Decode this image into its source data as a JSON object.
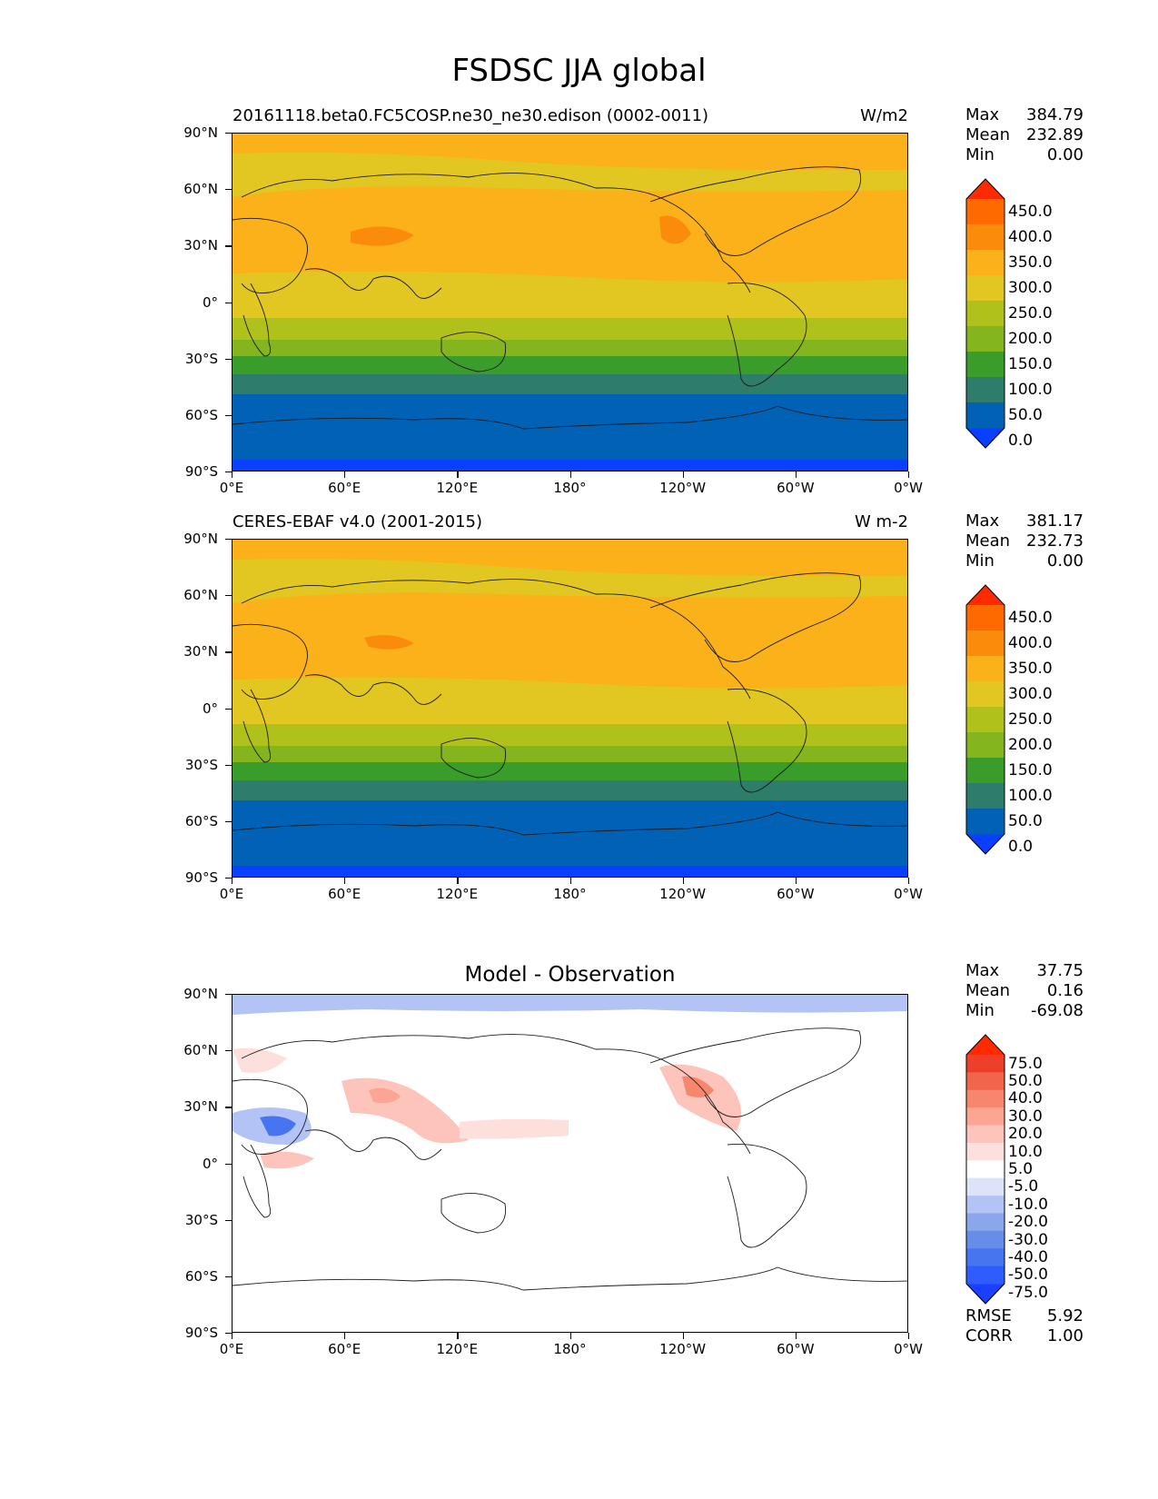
{
  "title": "FSDSC JJA global",
  "lat_labels": [
    "90°N",
    "60°N",
    "30°N",
    "0°",
    "30°S",
    "60°S",
    "90°S"
  ],
  "lon_labels": [
    "0°E",
    "60°E",
    "120°E",
    "180°",
    "120°W",
    "60°W",
    "0°W"
  ],
  "panels": [
    {
      "title_left": "20161118.beta0.FC5COSP.ne30_ne30.edison (0002-0011)",
      "title_right": "W/m2",
      "stats": {
        "max_label": "Max",
        "max": "384.79",
        "mean_label": "Mean",
        "mean": "232.89",
        "min_label": "Min",
        "min": "0.00"
      },
      "colorbar_labels": [
        "450.0",
        "400.0",
        "350.0",
        "300.0",
        "250.0",
        "200.0",
        "150.0",
        "100.0",
        "50.0",
        "0.0"
      ]
    },
    {
      "title_left": "CERES-EBAF v4.0 (2001-2015)",
      "title_right": "W m-2",
      "stats": {
        "max_label": "Max",
        "max": "381.17",
        "mean_label": "Mean",
        "mean": "232.73",
        "min_label": "Min",
        "min": "0.00"
      },
      "colorbar_labels": [
        "450.0",
        "400.0",
        "350.0",
        "300.0",
        "250.0",
        "200.0",
        "150.0",
        "100.0",
        "50.0",
        "0.0"
      ]
    },
    {
      "title_center": "Model - Observation",
      "stats": {
        "max_label": "Max",
        "max": "37.75",
        "mean_label": "Mean",
        "mean": "0.16",
        "min_label": "Min",
        "min": "-69.08"
      },
      "colorbar_labels": [
        "75.0",
        "50.0",
        "40.0",
        "30.0",
        "20.0",
        "10.0",
        "5.0",
        "-5.0",
        "-10.0",
        "-20.0",
        "-30.0",
        "-40.0",
        "-50.0",
        "-75.0"
      ],
      "metrics": {
        "rmse_label": "RMSE",
        "rmse": "5.92",
        "corr_label": "CORR",
        "corr": "1.00"
      }
    }
  ],
  "colors": {
    "field_scale": [
      "#0a3fff",
      "#0061b5",
      "#2e7d6b",
      "#3a9c2a",
      "#84b41e",
      "#b0c11c",
      "#e2c722",
      "#fbb11a",
      "#fb8c0b",
      "#ff6a00",
      "#ff2a00"
    ],
    "diff_scale": [
      "#1a3fff",
      "#2f5cff",
      "#4774ef",
      "#668ee8",
      "#8aa7ee",
      "#b3c3f6",
      "#dde4fa",
      "#ffffff",
      "#fde0dc",
      "#fcc4bb",
      "#fba592",
      "#f7866e",
      "#f3644d",
      "#ee3f2a",
      "#ff2a00"
    ]
  }
}
